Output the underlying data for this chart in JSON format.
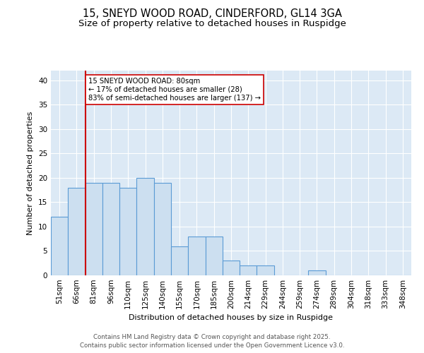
{
  "title1": "15, SNEYD WOOD ROAD, CINDERFORD, GL14 3GA",
  "title2": "Size of property relative to detached houses in Ruspidge",
  "xlabel": "Distribution of detached houses by size in Ruspidge",
  "ylabel": "Number of detached properties",
  "bar_labels": [
    "51sqm",
    "66sqm",
    "81sqm",
    "96sqm",
    "110sqm",
    "125sqm",
    "140sqm",
    "155sqm",
    "170sqm",
    "185sqm",
    "200sqm",
    "214sqm",
    "229sqm",
    "244sqm",
    "259sqm",
    "274sqm",
    "289sqm",
    "304sqm",
    "318sqm",
    "333sqm",
    "348sqm"
  ],
  "bar_values": [
    12,
    18,
    19,
    19,
    18,
    20,
    19,
    6,
    8,
    8,
    3,
    2,
    2,
    0,
    0,
    1,
    0,
    0,
    0,
    0,
    0
  ],
  "bar_color": "#ccdff0",
  "bar_edge_color": "#5b9bd5",
  "property_line_color": "#cc0000",
  "annotation_text": "15 SNEYD WOOD ROAD: 80sqm\n← 17% of detached houses are smaller (28)\n83% of semi-detached houses are larger (137) →",
  "annotation_box_color": "#ffffff",
  "annotation_box_edge": "#cc0000",
  "ylim": [
    0,
    42
  ],
  "yticks": [
    0,
    5,
    10,
    15,
    20,
    25,
    30,
    35,
    40
  ],
  "footer1": "Contains HM Land Registry data © Crown copyright and database right 2025.",
  "footer2": "Contains public sector information licensed under the Open Government Licence v3.0.",
  "bg_color": "#dce9f5",
  "fig_bg_color": "#ffffff",
  "title_fontsize": 10.5,
  "subtitle_fontsize": 9.5,
  "axis_label_fontsize": 8,
  "tick_fontsize": 7.5,
  "footer_fontsize": 6.2
}
